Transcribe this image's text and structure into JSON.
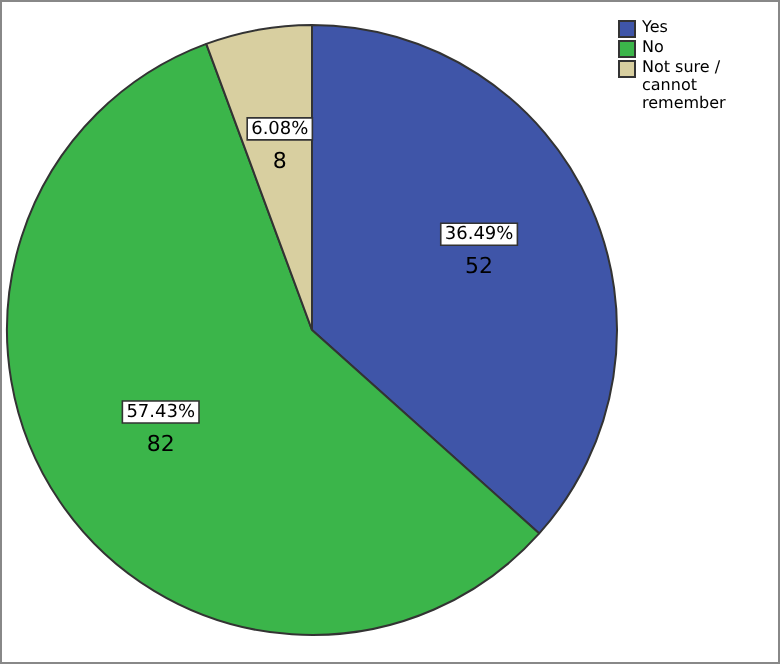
{
  "chart_data": {
    "type": "pie",
    "categories": [
      "Yes",
      "No",
      "Not sure / cannot remember"
    ],
    "values": [
      52,
      82,
      8
    ],
    "colors": [
      "#3f55a8",
      "#3bb54a",
      "#d8cfa0"
    ],
    "annotations": [
      "36.49%",
      "57.43%",
      "6.08%"
    ],
    "data_labels": true,
    "legend": "top right"
  }
}
